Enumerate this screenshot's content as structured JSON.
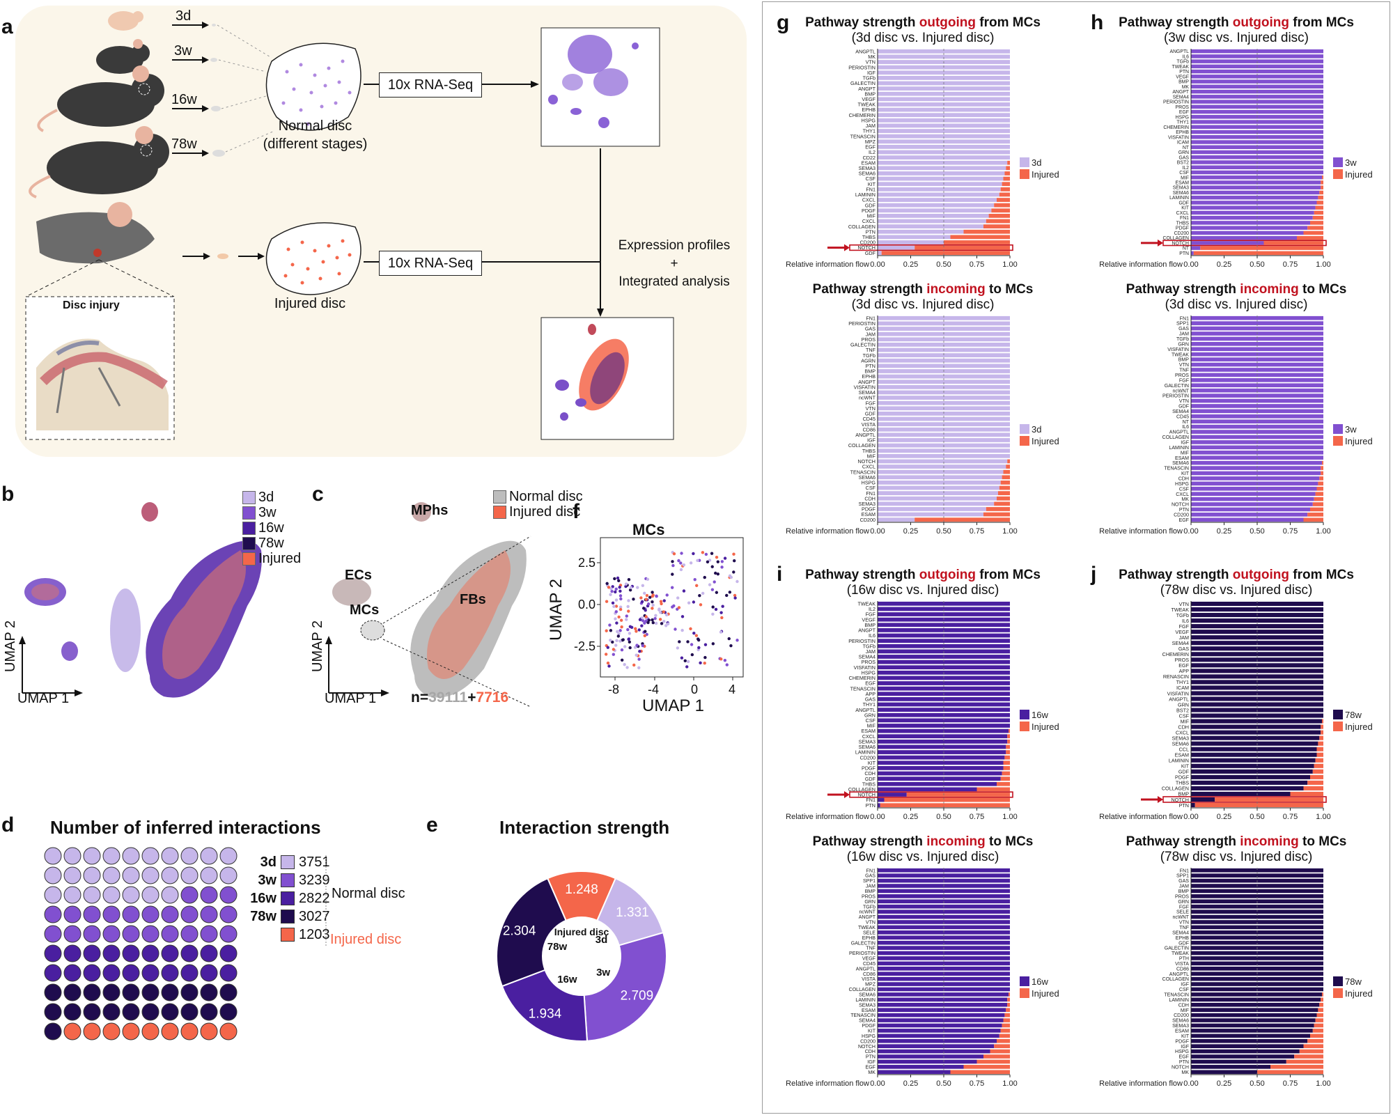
{
  "panel_labels": {
    "a": "a",
    "b": "b",
    "c": "c",
    "d": "d",
    "e": "e",
    "f": "f",
    "g": "g",
    "h": "h",
    "i": "i",
    "j": "j"
  },
  "panel_a": {
    "stages": [
      "3d",
      "3w",
      "16w",
      "78w"
    ],
    "normal_disc_line1": "Normal disc",
    "normal_disc_line2": "(different stages)",
    "seq_label_top": "10x RNA-Seq",
    "seq_label_bottom": "10x RNA-Seq",
    "injured_disc": "Injured disc",
    "disc_injury": "Disc injury",
    "expr_line1": "Expression profiles",
    "expr_line2": "+",
    "expr_line3": "Integrated analysis"
  },
  "panel_b": {
    "legend": [
      "3d",
      "3w",
      "16w",
      "78w",
      "Injured"
    ],
    "xlabel": "UMAP 1",
    "ylabel": "UMAP 2"
  },
  "panel_c": {
    "legend": [
      "Normal disc",
      "Injured disc"
    ],
    "clusters": [
      "MPhs",
      "ECs",
      "MCs",
      "FBs"
    ],
    "xlabel": "UMAP 1",
    "ylabel": "UMAP 2",
    "n_prefix": "n=",
    "n_normal": "39111",
    "n_plus": "+",
    "n_injured": "7716"
  },
  "panel_f": {
    "title": "MCs",
    "xlabel": "UMAP 1",
    "ylabel": "UMAP 2",
    "xticks": [
      "-8",
      "-4",
      "0",
      "4"
    ],
    "yticks": [
      "2.5",
      "0.0",
      "-2.5"
    ]
  },
  "panel_d": {
    "title": "Number of inferred interactions",
    "normal_label": "Normal disc",
    "injured_label": "Injured disc"
  },
  "panel_e": {
    "title": "Interaction strength",
    "center_label": "Injured disc"
  },
  "colors": {
    "3d": "#c6b6ea",
    "3w": "#8150d0",
    "16w": "#4a1fa0",
    "78w": "#1f0c4e",
    "Injured": "#f4664a",
    "normal_grey": "#bdbdbd"
  },
  "chart_data": [
    {
      "type": "waffle",
      "title": "Number of inferred interactions",
      "categories": [
        "3d",
        "3w",
        "16w",
        "78w",
        "Injured"
      ],
      "values": [
        3751,
        3239,
        2822,
        3027,
        1203
      ],
      "groups": [
        "Normal disc",
        "Normal disc",
        "Normal disc",
        "Normal disc",
        "Injured disc"
      ]
    },
    {
      "type": "pie",
      "title": "Interaction strength",
      "categories": [
        "3d",
        "3w",
        "16w",
        "78w",
        "Injured"
      ],
      "values": [
        1.331,
        2.709,
        1.934,
        2.304,
        1.248
      ],
      "labels": [
        "1.331",
        "2.709",
        "1.934",
        "2.304",
        "1.248"
      ],
      "center": "Injured disc"
    },
    {
      "id": "g1",
      "type": "bar",
      "orientation": "horizontal",
      "stacked": true,
      "title_a": "Pathway strength ",
      "title_b": "outgoing",
      "title_c": " from MCs",
      "subtitle": "(3d disc vs. Injured disc)",
      "series": [
        "3d",
        "Injured"
      ],
      "xlabel": "Relative information flow",
      "xticks": [
        "0.00",
        "0.25",
        "0.50",
        "0.75",
        "1.00"
      ],
      "highlight": "NOTCH",
      "categories": [
        "ANGPTL",
        "MK",
        "VTN",
        "PERIOSTIN",
        "IGF",
        "TGFb",
        "GALECTIN",
        "ANGPT",
        "BMP",
        "VEGF",
        "TWEAK",
        "EPHB",
        "CHEMERIN",
        "HSPG",
        "JAM",
        "THY1",
        "TENASCIN",
        "MPZ",
        "EGF",
        "IL2",
        "CD22",
        "ESAM",
        "SEMA3",
        "SEMA6",
        "CSF",
        "KIT",
        "FN1",
        "LAMININ",
        "CXCL",
        "GDF",
        "PDGF",
        "MIF",
        "CXCL",
        "COLLAGEN",
        "PTN",
        "THBS",
        "CD200",
        "NOTCH",
        "GDF"
      ],
      "values": [
        0,
        0,
        0,
        0,
        0,
        0,
        0,
        0,
        0,
        0,
        0,
        0,
        0,
        0,
        0,
        0,
        0,
        0,
        0,
        0,
        0,
        0.02,
        0.03,
        0.04,
        0.05,
        0.06,
        0.07,
        0.08,
        0.1,
        0.12,
        0.14,
        0.16,
        0.18,
        0.2,
        0.35,
        0.45,
        0.5,
        0.72,
        0.97
      ]
    },
    {
      "id": "h1",
      "type": "bar",
      "orientation": "horizontal",
      "stacked": true,
      "title_a": "Pathway strength ",
      "title_b": "outgoing",
      "title_c": " from MCs",
      "subtitle": "(3w disc vs. Injured disc)",
      "series": [
        "3w",
        "Injured"
      ],
      "xlabel": "Relative information flow",
      "xticks": [
        "0.00",
        "0.25",
        "0.50",
        "0.75",
        "1.00"
      ],
      "highlight": "NOTCH",
      "categories": [
        "ANGPTL",
        "IL6",
        "TGFb",
        "TWEAK",
        "PTN",
        "VEGF",
        "BMP",
        "MK",
        "ANGPT",
        "SEMA4",
        "PERIOSTIN",
        "PROS",
        "EGF",
        "HSPG",
        "THY1",
        "CHEMERIN",
        "EPHB",
        "VISFATIN",
        "ICAM",
        "NT",
        "GRN",
        "GAS",
        "BST2",
        "IL2",
        "CSF",
        "MIF",
        "ESAM",
        "SEMA3",
        "SEMA6",
        "LAMININ",
        "GDF",
        "KIT",
        "CXCL",
        "FN1",
        "THBS",
        "PDGF",
        "CD200",
        "COLLAGEN",
        "NOTCH",
        "NT",
        "PTN"
      ],
      "values": [
        0,
        0,
        0,
        0,
        0,
        0,
        0,
        0,
        0,
        0,
        0,
        0,
        0,
        0,
        0,
        0,
        0,
        0,
        0,
        0,
        0,
        0,
        0,
        0,
        0,
        0.01,
        0.02,
        0.02,
        0.03,
        0.04,
        0.05,
        0.06,
        0.07,
        0.08,
        0.1,
        0.12,
        0.15,
        0.2,
        0.45,
        0.93,
        0.98
      ]
    },
    {
      "id": "g2",
      "type": "bar",
      "orientation": "horizontal",
      "stacked": true,
      "title_a": "Pathway strength ",
      "title_b": "incoming",
      "title_c": " to MCs",
      "subtitle": "(3d disc vs. Injured disc)",
      "series": [
        "3d",
        "Injured"
      ],
      "xlabel": "Relative information flow",
      "xticks": [
        "0.00",
        "0.25",
        "0.50",
        "0.75",
        "1.00"
      ],
      "categories": [
        "FN1",
        "PERIOSTIN",
        "GAS",
        "JAM",
        "PROS",
        "GALECTIN",
        "TNF",
        "TGFb",
        "AGRN",
        "PTN",
        "BMP",
        "EPHB",
        "ANGPT",
        "VISFATIN",
        "SEMA4",
        "ncWNT",
        "FGF",
        "VTN",
        "GDF",
        "CD45",
        "VISTA",
        "CD86",
        "ANGPTL",
        "IGF",
        "COLLAGEN",
        "THBS",
        "MIF",
        "NOTCH",
        "CXCL",
        "TENASCIN",
        "SEMA6",
        "HSPG",
        "CSF",
        "FN1",
        "CDH",
        "SEMA3",
        "PDGF",
        "ESAM",
        "CD200"
      ],
      "values": [
        0,
        0,
        0,
        0,
        0,
        0,
        0,
        0,
        0,
        0,
        0,
        0,
        0,
        0,
        0,
        0,
        0,
        0,
        0,
        0,
        0,
        0,
        0,
        0,
        0,
        0,
        0,
        0.02,
        0.03,
        0.05,
        0.06,
        0.07,
        0.08,
        0.09,
        0.1,
        0.12,
        0.18,
        0.2,
        0.72
      ]
    },
    {
      "id": "h2",
      "type": "bar",
      "orientation": "horizontal",
      "stacked": true,
      "title_a": "Pathway strength ",
      "title_b": "incoming",
      "title_c": " to MCs",
      "subtitle": "(3d disc vs. Injured disc)",
      "series": [
        "3w",
        "Injured"
      ],
      "xlabel": "Relative information flow",
      "xticks": [
        "0.00",
        "0.25",
        "0.50",
        "0.75",
        "1.00"
      ],
      "categories": [
        "FN1",
        "SPP1",
        "GAS",
        "JAM",
        "TGFb",
        "GRN",
        "VISFATIN",
        "TWEAK",
        "BMP",
        "VTN",
        "TNF",
        "PROS",
        "FGF",
        "GALECTIN",
        "ncWNT",
        "PERIOSTIN",
        "VTN",
        "GDF",
        "SEMA4",
        "CD45",
        "NT",
        "IL6",
        "ANGPTL",
        "COLLAGEN",
        "IGF",
        "LAMININ",
        "MIF",
        "ESAM",
        "SEMA6",
        "TENASCIN",
        "KIT",
        "CDH",
        "HSPG",
        "CSF",
        "CXCL",
        "MK",
        "NOTCH",
        "PTN",
        "CD200",
        "EGF"
      ],
      "values": [
        0,
        0,
        0,
        0,
        0,
        0,
        0,
        0,
        0,
        0,
        0,
        0,
        0,
        0,
        0,
        0,
        0,
        0,
        0,
        0,
        0,
        0,
        0,
        0,
        0,
        0,
        0,
        0,
        0.01,
        0.02,
        0.02,
        0.03,
        0.04,
        0.05,
        0.06,
        0.07,
        0.08,
        0.1,
        0.12,
        0.15
      ]
    },
    {
      "id": "i1",
      "type": "bar",
      "orientation": "horizontal",
      "stacked": true,
      "title_a": "Pathway strength ",
      "title_b": "outgoing",
      "title_c": " from MCs",
      "subtitle": "(16w disc vs. Injured disc)",
      "series": [
        "16w",
        "Injured"
      ],
      "xlabel": "Relative information flow",
      "xticks": [
        "0.00",
        "0.25",
        "0.50",
        "0.75",
        "1.00"
      ],
      "highlight": "NOTCH",
      "categories": [
        "TWEAK",
        "IL2",
        "FGF",
        "VEGF",
        "BMP",
        "ANGPT",
        "IL6",
        "PERIOSTIN",
        "TGFb",
        "JAM",
        "SEMA4",
        "PROS",
        "VISFATIN",
        "HSPG",
        "CHEMERIN",
        "EGF",
        "TENASCIN",
        "APP",
        "GAS",
        "THY1",
        "ANGPTL",
        "GRN",
        "CSF",
        "MIF",
        "ESAM",
        "CXCL",
        "SEMA3",
        "SEMA6",
        "LAMININ",
        "CD200",
        "KIT",
        "PDGF",
        "CDH",
        "GDF",
        "THBS",
        "COLLAGEN",
        "NOTCH",
        "FN1",
        "PTN"
      ],
      "values": [
        0,
        0,
        0,
        0,
        0,
        0,
        0,
        0,
        0,
        0,
        0,
        0,
        0,
        0,
        0,
        0,
        0,
        0,
        0,
        0,
        0,
        0,
        0,
        0,
        0.01,
        0.02,
        0.02,
        0.03,
        0.03,
        0.04,
        0.05,
        0.05,
        0.06,
        0.07,
        0.1,
        0.25,
        0.78,
        0.95,
        0.98
      ]
    },
    {
      "id": "j1",
      "type": "bar",
      "orientation": "horizontal",
      "stacked": true,
      "title_a": "Pathway strength ",
      "title_b": "outgoing",
      "title_c": " from MCs",
      "subtitle": "(78w disc vs. Injured disc)",
      "series": [
        "78w",
        "Injured"
      ],
      "xlabel": "Relative information flow",
      "xticks": [
        "0.00",
        "0.25",
        "0.50",
        "0.75",
        "1.00"
      ],
      "highlight": "NOTCH",
      "categories": [
        "VTN",
        "TWEAK",
        "TGFb",
        "IL6",
        "FGF",
        "VEGF",
        "JAM",
        "SEMA4",
        "GAS",
        "CHEMERIN",
        "PROS",
        "EGF",
        "APP",
        "RENASCIN",
        "THY1",
        "ICAM",
        "VISFATIN",
        "ANGPTL",
        "GRN",
        "BST2",
        "CSF",
        "MIF",
        "CDH",
        "CXCL",
        "SEMA3",
        "SEMA6",
        "CCL",
        "ESAM",
        "LAMININ",
        "KIT",
        "GDF",
        "PDGF",
        "THBS",
        "COLLAGEN",
        "BMP",
        "NOTCH",
        "PTN"
      ],
      "values": [
        0,
        0,
        0,
        0,
        0,
        0,
        0,
        0,
        0,
        0,
        0,
        0,
        0,
        0,
        0,
        0,
        0,
        0,
        0,
        0,
        0,
        0.01,
        0.02,
        0.02,
        0.03,
        0.04,
        0.05,
        0.05,
        0.06,
        0.07,
        0.08,
        0.1,
        0.12,
        0.15,
        0.25,
        0.82,
        0.97
      ]
    },
    {
      "id": "i2",
      "type": "bar",
      "orientation": "horizontal",
      "stacked": true,
      "title_a": "Pathway strength ",
      "title_b": "incoming",
      "title_c": " to MCs",
      "subtitle": "(16w disc vs. Injured disc)",
      "series": [
        "16w",
        "Injured"
      ],
      "xlabel": "Relative information flow",
      "xticks": [
        "0.00",
        "0.25",
        "0.50",
        "0.75",
        "1.00"
      ],
      "categories": [
        "FN1",
        "GAS",
        "SPP1",
        "JAM",
        "BMP",
        "PROS",
        "GRN",
        "TGFb",
        "ncWNT",
        "ANGPT",
        "VTN",
        "TWEAK",
        "SELE",
        "EPHB",
        "GALECTIN",
        "TNF",
        "PERIOSTIN",
        "VEGF",
        "CD45",
        "ANGPTL",
        "CD86",
        "VISTA",
        "MPZ",
        "COLLAGEN",
        "SEMA6",
        "LAMININ",
        "SEMA3",
        "ESAM",
        "TENASCIN",
        "SEMA4",
        "PDGF",
        "KIT",
        "HSPG",
        "CD200",
        "NOTCH",
        "CDH",
        "PTN",
        "IGF",
        "EGF",
        "MK"
      ],
      "values": [
        0,
        0,
        0,
        0,
        0,
        0,
        0,
        0,
        0,
        0,
        0,
        0,
        0,
        0,
        0,
        0,
        0,
        0,
        0,
        0,
        0,
        0,
        0,
        0,
        0.01,
        0.02,
        0.02,
        0.03,
        0.04,
        0.05,
        0.06,
        0.07,
        0.08,
        0.1,
        0.12,
        0.15,
        0.2,
        0.25,
        0.35,
        0.45
      ]
    },
    {
      "id": "j2",
      "type": "bar",
      "orientation": "horizontal",
      "stacked": true,
      "title_a": "Pathway strength ",
      "title_b": "incoming",
      "title_c": " to MCs",
      "subtitle": "(78w disc vs. Injured disc)",
      "series": [
        "78w",
        "Injured"
      ],
      "xlabel": "Relative information flow",
      "xticks": [
        "0.00",
        "0.25",
        "0.50",
        "0.75",
        "1.00"
      ],
      "categories": [
        "FN1",
        "SPP1",
        "GAS",
        "JAM",
        "BMP",
        "PROS",
        "GRN",
        "FGF",
        "SELE",
        "ncWNT",
        "VTN",
        "TNF",
        "SEMA4",
        "EPHB",
        "GDF",
        "GALECTIN",
        "TWEAK",
        "PTH",
        "VISTA",
        "CD86",
        "ANGPTL",
        "COLLAGEN",
        "IGF",
        "CSF",
        "TENASCIN",
        "LAMININ",
        "CDH",
        "MIF",
        "CD200",
        "SEMA6",
        "SEMA3",
        "ESAM",
        "KIT",
        "PDGF",
        "IGF",
        "HSPG",
        "EGF",
        "PTN",
        "NOTCH",
        "MK"
      ],
      "values": [
        0,
        0,
        0,
        0,
        0,
        0,
        0,
        0,
        0,
        0,
        0,
        0,
        0,
        0,
        0,
        0,
        0,
        0,
        0,
        0,
        0,
        0,
        0,
        0,
        0.01,
        0.02,
        0.03,
        0.04,
        0.05,
        0.06,
        0.07,
        0.08,
        0.1,
        0.12,
        0.15,
        0.18,
        0.22,
        0.28,
        0.4,
        0.5
      ]
    }
  ]
}
